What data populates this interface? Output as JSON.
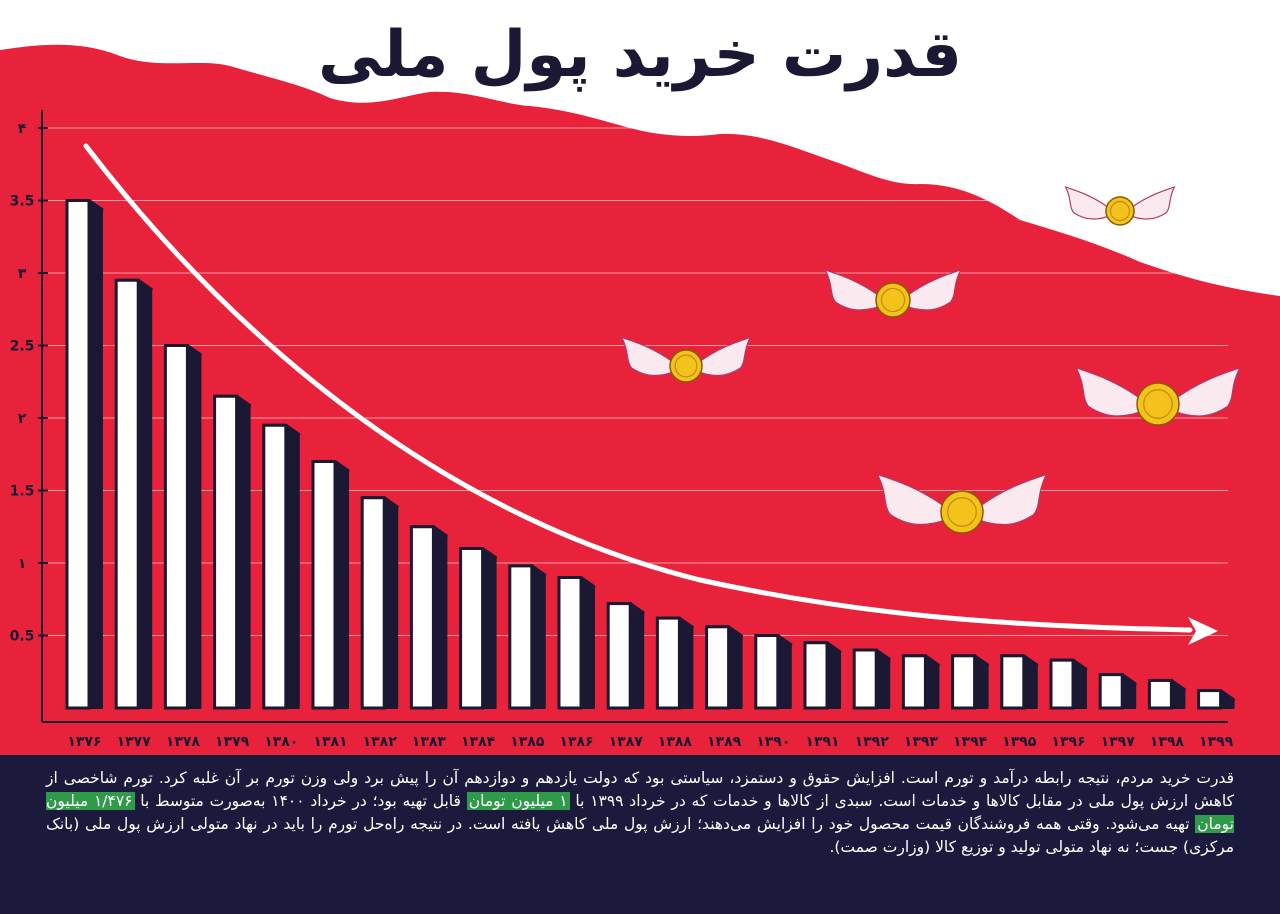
{
  "title": "قدرت خرید پول ملی",
  "colors": {
    "background_red": "#e8223a",
    "bar_face": "#ffffff",
    "bar_side": "#1b1834",
    "trend_arrow": "#ffffff",
    "coin": "#f3c21d",
    "caption_bg": "#1c1a3c",
    "highlight": "#2f9a4a"
  },
  "chart_data": {
    "type": "bar",
    "title": "قدرت خرید پول ملی",
    "xlabel": "",
    "ylabel": "",
    "ylim": [
      0,
      4
    ],
    "yticks": [
      {
        "value": 4,
        "label": "۴"
      },
      {
        "value": 3.5,
        "label": "3.5"
      },
      {
        "value": 3,
        "label": "۳"
      },
      {
        "value": 2.5,
        "label": "2.5"
      },
      {
        "value": 2,
        "label": "۲"
      },
      {
        "value": 1.5,
        "label": "1.5"
      },
      {
        "value": 1,
        "label": "۱"
      },
      {
        "value": 0.5,
        "label": "0.5"
      }
    ],
    "grid": true,
    "categories": [
      "۱۳۷۶",
      "۱۳۷۷",
      "۱۳۷۸",
      "۱۳۷۹",
      "۱۳۸۰",
      "۱۳۸۱",
      "۱۳۸۲",
      "۱۳۸۳",
      "۱۳۸۴",
      "۱۳۸۵",
      "۱۳۸۶",
      "۱۳۸۷",
      "۱۳۸۸",
      "۱۳۸۹",
      "۱۳۹۰",
      "۱۳۹۱",
      "۱۳۹۲",
      "۱۳۹۳",
      "۱۳۹۴",
      "۱۳۹۵",
      "۱۳۹۶",
      "۱۳۹۷",
      "۱۳۹۸",
      "۱۳۹۹"
    ],
    "values": [
      3.5,
      2.95,
      2.5,
      2.15,
      1.95,
      1.7,
      1.45,
      1.25,
      1.1,
      0.98,
      0.9,
      0.72,
      0.62,
      0.56,
      0.5,
      0.45,
      0.4,
      0.36,
      0.36,
      0.36,
      0.33,
      0.23,
      0.19,
      0.12
    ],
    "trend": "decreasing"
  },
  "caption": {
    "p1": "قدرت خرید مردم، نتیجه رابطه درآمد و تورم است. افزایش حقوق و دستمزد، سیاستی بود که دولت یازدهم و دوازدهم آن را پیش برد ولی وزن تورم بر آن غلبه کرد. تورم شاخصی از کاهش ارزش پول ملی در مقابل کالاها و خدمات است. سبدی از کالاها و خدمات که در خرداد ۱۳۹۹ با",
    "h1": "۱ میلیون تومان",
    "p2": "قابل تهیه بود؛ در خرداد ۱۴۰۰ به‌صورت متوسط با",
    "h2": "۱/۴۷۶ میلیون تومان",
    "p3": "تهیه می‌شود. وقتی همه فروشندگان قیمت محصول خود را افزایش می‌دهند؛ ارزش پول ملی کاهش یافته است. در نتیجه راه‌حل تورم را باید در نهاد متولی ارزش پول ملی (بانک مرکزی) جست؛ نه نهاد متولی تولید و توزیع کالا (وزارت صمت)."
  }
}
